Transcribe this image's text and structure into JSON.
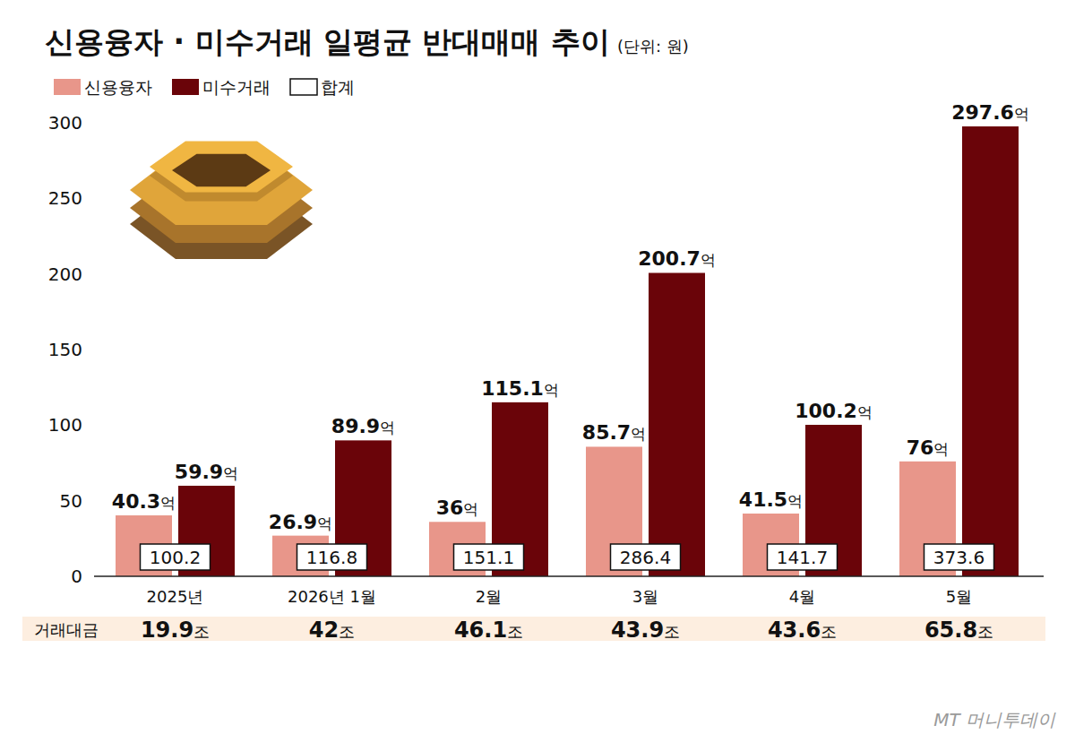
{
  "chart_data": {
    "type": "bar",
    "title": "신용융자 · 미수거래 일평균 반대매매 추이",
    "subtitle": "(단위: 원)",
    "categories": [
      "2025년",
      "2026년 1월",
      "2월",
      "3월",
      "4월",
      "5월"
    ],
    "series": [
      {
        "name": "신용융자",
        "color": "#e8968a",
        "values": [
          40.3,
          26.9,
          36,
          85.7,
          41.5,
          76
        ],
        "value_labels": [
          "40.3억",
          "26.9억",
          "36억",
          "85.7억",
          "41.5억",
          "76억"
        ]
      },
      {
        "name": "미수거래",
        "color": "#6a0409",
        "values": [
          59.9,
          89.9,
          115.1,
          200.7,
          100.2,
          297.6
        ],
        "value_labels": [
          "59.9억",
          "89.9억",
          "115.1억",
          "200.7억",
          "100.2억",
          "297.6억"
        ]
      }
    ],
    "totals": {
      "name": "합계",
      "values": [
        100.2,
        116.8,
        151.1,
        286.4,
        141.7,
        373.6
      ]
    },
    "trading_value": {
      "label": "거래대금",
      "values": [
        19.9,
        42,
        46.1,
        43.9,
        43.6,
        65.8
      ],
      "value_labels": [
        "19.9조",
        "42조",
        "46.1조",
        "43.9조",
        "43.6조",
        "65.8조"
      ]
    },
    "ylim": [
      0,
      300
    ],
    "yticks": [
      0,
      50,
      100,
      150,
      200,
      250,
      300
    ],
    "grid": false,
    "data_labels": true,
    "legend": "top-left",
    "source": "MT 머니투데이"
  }
}
